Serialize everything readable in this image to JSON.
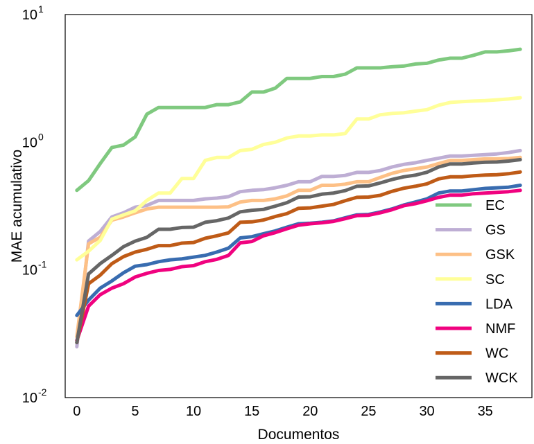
{
  "chart_data": {
    "type": "line",
    "title": "",
    "xlabel": "Documentos",
    "ylabel": "MAE acumulativo",
    "yscale": "log",
    "xlim": [
      -1,
      39
    ],
    "ylim": [
      0.01,
      10
    ],
    "x_ticks": [
      0,
      5,
      10,
      15,
      20,
      25,
      30,
      35
    ],
    "y_ticks": [
      {
        "value": 0.01,
        "base": "10",
        "exp": "-2"
      },
      {
        "value": 0.1,
        "base": "10",
        "exp": "-1"
      },
      {
        "value": 1,
        "base": "10",
        "exp": "0"
      },
      {
        "value": 10,
        "base": "10",
        "exp": "1"
      }
    ],
    "grid": false,
    "legend_position": "lower-right",
    "x": [
      0,
      1,
      2,
      3,
      4,
      5,
      6,
      7,
      8,
      9,
      10,
      11,
      12,
      13,
      14,
      15,
      16,
      17,
      18,
      19,
      20,
      21,
      22,
      23,
      24,
      25,
      26,
      27,
      28,
      29,
      30,
      31,
      32,
      33,
      34,
      35,
      36,
      37,
      38
    ],
    "series": [
      {
        "name": "EC",
        "color": "#7fc97f",
        "values": [
          0.42,
          0.5,
          0.68,
          0.91,
          0.95,
          1.1,
          1.66,
          1.87,
          1.87,
          1.87,
          1.87,
          1.87,
          1.97,
          1.97,
          2.07,
          2.47,
          2.47,
          2.65,
          3.16,
          3.16,
          3.16,
          3.27,
          3.27,
          3.41,
          3.82,
          3.82,
          3.82,
          3.9,
          3.95,
          4.1,
          4.15,
          4.4,
          4.55,
          4.55,
          4.8,
          5.1,
          5.1,
          5.2,
          5.35
        ]
      },
      {
        "name": "GS",
        "color": "#beaed4",
        "values": [
          0.025,
          0.168,
          0.2,
          0.26,
          0.28,
          0.31,
          0.32,
          0.35,
          0.35,
          0.35,
          0.35,
          0.36,
          0.365,
          0.375,
          0.41,
          0.42,
          0.425,
          0.44,
          0.46,
          0.49,
          0.49,
          0.54,
          0.54,
          0.55,
          0.58,
          0.58,
          0.6,
          0.64,
          0.67,
          0.69,
          0.72,
          0.75,
          0.78,
          0.78,
          0.79,
          0.8,
          0.81,
          0.83,
          0.86
        ]
      },
      {
        "name": "GSK",
        "color": "#fdc086",
        "values": [
          0.03,
          0.16,
          0.18,
          0.245,
          0.26,
          0.28,
          0.3,
          0.31,
          0.31,
          0.31,
          0.31,
          0.31,
          0.31,
          0.312,
          0.34,
          0.35,
          0.35,
          0.36,
          0.38,
          0.42,
          0.42,
          0.46,
          0.46,
          0.47,
          0.49,
          0.49,
          0.53,
          0.57,
          0.6,
          0.62,
          0.64,
          0.68,
          0.72,
          0.72,
          0.73,
          0.74,
          0.74,
          0.745,
          0.76
        ]
      },
      {
        "name": "SC",
        "color": "#ffff99",
        "values": [
          0.12,
          0.14,
          0.17,
          0.25,
          0.27,
          0.29,
          0.35,
          0.4,
          0.4,
          0.52,
          0.52,
          0.72,
          0.76,
          0.76,
          0.86,
          0.88,
          0.96,
          1.0,
          1.08,
          1.12,
          1.12,
          1.14,
          1.14,
          1.17,
          1.52,
          1.52,
          1.64,
          1.68,
          1.7,
          1.75,
          1.8,
          1.95,
          2.05,
          2.08,
          2.1,
          2.12,
          2.15,
          2.18,
          2.23
        ]
      },
      {
        "name": "LDA",
        "color": "#386cb0",
        "values": [
          0.044,
          0.058,
          0.072,
          0.082,
          0.095,
          0.107,
          0.11,
          0.116,
          0.12,
          0.122,
          0.126,
          0.13,
          0.138,
          0.148,
          0.178,
          0.182,
          0.192,
          0.202,
          0.216,
          0.23,
          0.232,
          0.236,
          0.242,
          0.256,
          0.27,
          0.272,
          0.284,
          0.3,
          0.322,
          0.34,
          0.36,
          0.4,
          0.415,
          0.415,
          0.425,
          0.435,
          0.44,
          0.445,
          0.46
        ]
      },
      {
        "name": "NMF",
        "color": "#f0027f",
        "values": [
          0.028,
          0.052,
          0.064,
          0.072,
          0.078,
          0.088,
          0.094,
          0.099,
          0.101,
          0.106,
          0.108,
          0.116,
          0.121,
          0.13,
          0.163,
          0.167,
          0.185,
          0.196,
          0.21,
          0.224,
          0.23,
          0.234,
          0.24,
          0.252,
          0.266,
          0.268,
          0.28,
          0.296,
          0.318,
          0.33,
          0.348,
          0.37,
          0.385,
          0.385,
          0.395,
          0.4,
          0.405,
          0.41,
          0.42
        ]
      },
      {
        "name": "WC",
        "color": "#bf5b17",
        "values": [
          0.027,
          0.078,
          0.091,
          0.112,
          0.127,
          0.138,
          0.145,
          0.155,
          0.155,
          0.162,
          0.164,
          0.177,
          0.185,
          0.195,
          0.236,
          0.238,
          0.246,
          0.262,
          0.276,
          0.304,
          0.306,
          0.316,
          0.326,
          0.348,
          0.37,
          0.372,
          0.384,
          0.412,
          0.436,
          0.452,
          0.472,
          0.516,
          0.536,
          0.536,
          0.546,
          0.553,
          0.556,
          0.567,
          0.585
        ]
      },
      {
        "name": "WCK",
        "color": "#666666",
        "values": [
          0.027,
          0.093,
          0.112,
          0.13,
          0.152,
          0.168,
          0.18,
          0.208,
          0.208,
          0.215,
          0.216,
          0.236,
          0.243,
          0.255,
          0.285,
          0.293,
          0.298,
          0.316,
          0.336,
          0.372,
          0.374,
          0.392,
          0.4,
          0.418,
          0.452,
          0.455,
          0.48,
          0.51,
          0.536,
          0.552,
          0.582,
          0.64,
          0.676,
          0.676,
          0.688,
          0.696,
          0.7,
          0.712,
          0.73
        ]
      }
    ]
  }
}
